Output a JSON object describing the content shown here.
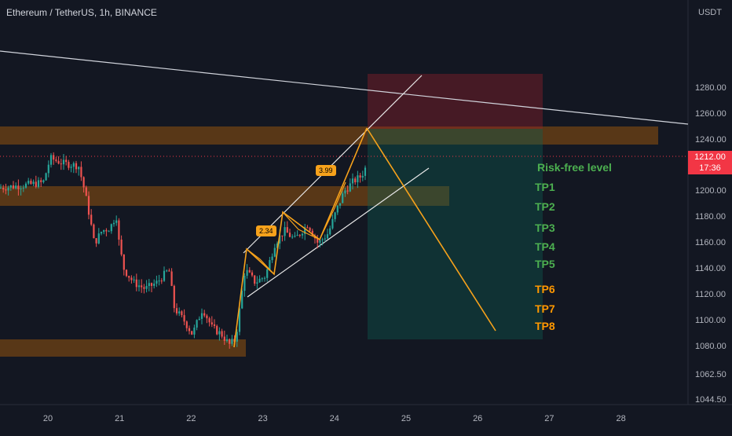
{
  "header": {
    "title": "Ethereum / TetherUS, 1h, BINANCE"
  },
  "currency_label": "USDT",
  "last_price": {
    "value": "1212.00",
    "countdown": "17:36"
  },
  "annotations": {
    "risk_free": "Risk-free level",
    "targets": [
      "TP1",
      "TP2",
      "TP3",
      "TP4",
      "TP5",
      "TP6",
      "TP7",
      "TP8"
    ],
    "ratio_1": "2.34",
    "ratio_2": "3.99"
  },
  "colors": {
    "background": "#131722",
    "bull_candle": "#26a69a",
    "bear_candle": "#ef5350",
    "zone": "#b8650a",
    "stop_zone": "#9c1f2a",
    "target_zone": "#0d5f52",
    "pattern_line": "#f7a21b",
    "tp_green": "#4caf50",
    "tp_orange": "#ff9800"
  },
  "chart_data": {
    "type": "candlestick",
    "title": "Ethereum / TetherUS, 1h, BINANCE",
    "x_axis": {
      "type": "date",
      "ticks": [
        "20",
        "21",
        "22",
        "23",
        "24",
        "25",
        "26",
        "27",
        "28"
      ]
    },
    "y_axis": {
      "label": "USDT",
      "ticks": [
        "1044.50",
        "1062.50",
        "1080.00",
        "1100.00",
        "1120.00",
        "1140.00",
        "1160.00",
        "1180.00",
        "1200.00",
        "1220.00",
        "1240.00",
        "1260.00",
        "1280.00"
      ]
    },
    "current_price": 1212.0,
    "key_points": [
      {
        "x": "22.6",
        "y": 1082
      },
      {
        "x": "22.8",
        "y": 1146
      },
      {
        "x": "23.0",
        "y": 1125
      },
      {
        "x": "23.3",
        "y": 1172
      },
      {
        "x": "23.8",
        "y": 1150
      },
      {
        "x": "24.4",
        "y": 1233
      }
    ],
    "projection_end": {
      "x": "26.3",
      "y": 1090
    },
    "zones": [
      {
        "name": "resistance",
        "from": 1222,
        "to": 1242
      },
      {
        "name": "mid",
        "from": 1176,
        "to": 1190
      },
      {
        "name": "support",
        "from": 1074,
        "to": 1086
      },
      {
        "name": "stop",
        "from": 1233,
        "to": 1272
      },
      {
        "name": "target",
        "from": 1085,
        "to": 1233
      }
    ],
    "levels": [
      "Risk-free level",
      "TP1",
      "TP2",
      "TP3",
      "TP4",
      "TP5",
      "TP6",
      "TP7",
      "TP8"
    ]
  }
}
